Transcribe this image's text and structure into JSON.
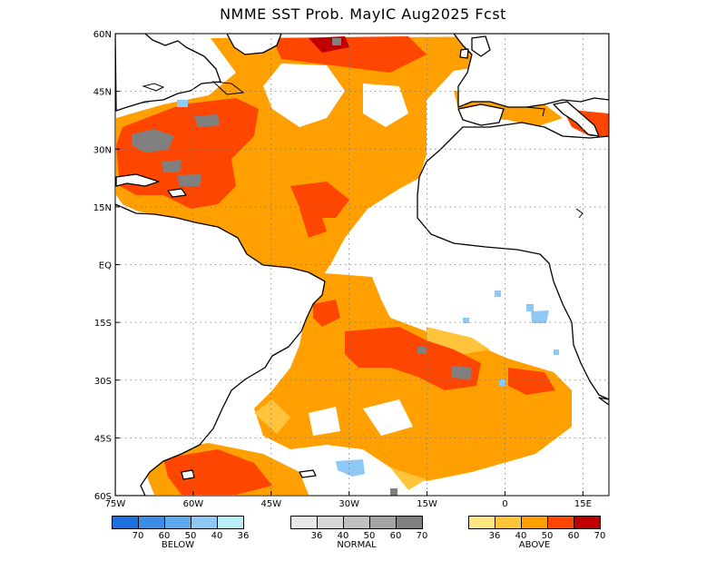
{
  "title": "NMME  SST  Prob.  MayIC   Aug2025  Fcst",
  "map": {
    "lon_range": [
      -75,
      20
    ],
    "lat_range": [
      -60,
      60
    ],
    "grid": true,
    "x_ticks": [
      {
        "lon": -75,
        "label": "75W"
      },
      {
        "lon": -60,
        "label": "60W"
      },
      {
        "lon": -45,
        "label": "45W"
      },
      {
        "lon": -30,
        "label": "30W"
      },
      {
        "lon": -15,
        "label": "15W"
      },
      {
        "lon": 0,
        "label": "0"
      },
      {
        "lon": 15,
        "label": "15E"
      }
    ],
    "y_ticks": [
      {
        "lat": 60,
        "label": "60N"
      },
      {
        "lat": 45,
        "label": "45N"
      },
      {
        "lat": 30,
        "label": "30N"
      },
      {
        "lat": 15,
        "label": "15N"
      },
      {
        "lat": 0,
        "label": "EQ"
      },
      {
        "lat": -15,
        "label": "15S"
      },
      {
        "lat": -30,
        "label": "30S"
      },
      {
        "lat": -45,
        "label": "45S"
      },
      {
        "lat": -60,
        "label": "60S"
      }
    ]
  },
  "legend": {
    "below": {
      "label": "BELOW",
      "colors": [
        "#1e6fe0",
        "#3a8ee8",
        "#5ea8ef",
        "#8ec8f5",
        "#b8eef8"
      ],
      "tick_labels": [
        "70",
        "60",
        "50",
        "40",
        "36"
      ]
    },
    "normal": {
      "label": "NORMAL",
      "colors": [
        "#e8e8e8",
        "#d8d8d8",
        "#c0c0c0",
        "#a4a4a4",
        "#808080"
      ],
      "tick_labels": [
        "36",
        "40",
        "50",
        "60",
        "70"
      ]
    },
    "above": {
      "label": "ABOVE",
      "colors": [
        "#ffe680",
        "#ffc43c",
        "#ffa000",
        "#ff4600",
        "#c00000"
      ],
      "tick_labels": [
        "36",
        "40",
        "50",
        "60",
        "70"
      ]
    }
  }
}
